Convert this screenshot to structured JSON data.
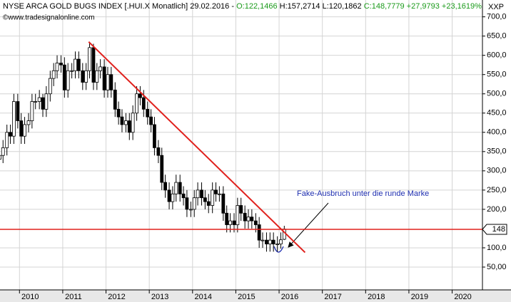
{
  "chart_data": {
    "type": "candlestick",
    "title": "NYSE ARCA GOLD BUGS INDEX [.HUI.X  Monatlich] 29.02.2016 -",
    "quote": [
      "O:122,1466",
      "H:157,2714",
      "L:120,1862",
      "C:148,7779 +27,9793 +23,1619%"
    ],
    "source": "©www.tradesignalonline.com",
    "axis_code": "XXP",
    "annotation": "Fake-Ausbruch unter die runde Marke",
    "x": [
      2009.54,
      2009.62,
      2009.71,
      2009.79,
      2009.87,
      2009.96,
      2010.04,
      2010.12,
      2010.21,
      2010.29,
      2010.37,
      2010.46,
      2010.54,
      2010.62,
      2010.71,
      2010.79,
      2010.87,
      2010.96,
      2011.04,
      2011.12,
      2011.21,
      2011.29,
      2011.37,
      2011.46,
      2011.54,
      2011.62,
      2011.71,
      2011.79,
      2011.87,
      2011.96,
      2012.04,
      2012.12,
      2012.21,
      2012.29,
      2012.37,
      2012.46,
      2012.54,
      2012.62,
      2012.71,
      2012.79,
      2012.87,
      2012.96,
      2013.04,
      2013.12,
      2013.21,
      2013.29,
      2013.37,
      2013.46,
      2013.54,
      2013.62,
      2013.71,
      2013.79,
      2013.87,
      2013.96,
      2014.04,
      2014.12,
      2014.21,
      2014.29,
      2014.37,
      2014.46,
      2014.54,
      2014.62,
      2014.71,
      2014.79,
      2014.87,
      2014.96,
      2015.04,
      2015.12,
      2015.21,
      2015.29,
      2015.37,
      2015.46,
      2015.54,
      2015.62,
      2015.71,
      2015.79,
      2015.87,
      2015.96,
      2016.04,
      2016.12
    ],
    "open": [
      330,
      340,
      360,
      400,
      390,
      480,
      430,
      390,
      420,
      430,
      480,
      480,
      490,
      460,
      500,
      540,
      560,
      580,
      575,
      510,
      560,
      560,
      590,
      560,
      530,
      560,
      620,
      530,
      560,
      570,
      510,
      550,
      510,
      460,
      440,
      420,
      430,
      400,
      450,
      500,
      490,
      460,
      440,
      420,
      360,
      340,
      270,
      250,
      220,
      240,
      270,
      240,
      230,
      200,
      200,
      230,
      250,
      230,
      220,
      210,
      250,
      240,
      240,
      190,
      160,
      170,
      160,
      210,
      190,
      170,
      180,
      170,
      160,
      120,
      120,
      110,
      120,
      110,
      110,
      122.1466
    ],
    "high": [
      360,
      380,
      420,
      420,
      500,
      500,
      450,
      440,
      450,
      500,
      500,
      510,
      500,
      520,
      560,
      580,
      600,
      600,
      595,
      580,
      580,
      610,
      610,
      580,
      580,
      635,
      630,
      580,
      590,
      590,
      570,
      570,
      530,
      480,
      460,
      450,
      450,
      470,
      520,
      520,
      510,
      480,
      460,
      440,
      380,
      360,
      290,
      270,
      260,
      290,
      290,
      260,
      250,
      220,
      250,
      270,
      270,
      250,
      240,
      270,
      270,
      260,
      260,
      210,
      190,
      190,
      230,
      230,
      210,
      200,
      200,
      190,
      180,
      140,
      140,
      140,
      140,
      130,
      140,
      157.2714
    ],
    "low": [
      310,
      320,
      340,
      370,
      370,
      410,
      370,
      370,
      400,
      410,
      460,
      460,
      440,
      440,
      480,
      520,
      540,
      555,
      490,
      490,
      540,
      540,
      540,
      510,
      510,
      540,
      510,
      510,
      540,
      490,
      490,
      490,
      440,
      420,
      400,
      400,
      380,
      380,
      430,
      470,
      440,
      420,
      400,
      340,
      320,
      250,
      230,
      200,
      200,
      220,
      220,
      210,
      180,
      180,
      180,
      210,
      210,
      200,
      190,
      190,
      220,
      220,
      170,
      140,
      140,
      140,
      140,
      170,
      150,
      150,
      150,
      140,
      100,
      100,
      90,
      90,
      90,
      90,
      98,
      120.1862
    ],
    "close": [
      340,
      360,
      400,
      390,
      480,
      430,
      390,
      420,
      430,
      480,
      480,
      490,
      460,
      500,
      540,
      560,
      580,
      575,
      510,
      560,
      560,
      590,
      560,
      530,
      560,
      620,
      530,
      560,
      570,
      510,
      550,
      510,
      460,
      440,
      420,
      430,
      400,
      450,
      500,
      490,
      460,
      440,
      420,
      360,
      340,
      270,
      250,
      220,
      240,
      270,
      240,
      230,
      200,
      200,
      230,
      250,
      230,
      220,
      210,
      250,
      240,
      240,
      190,
      160,
      170,
      160,
      210,
      190,
      170,
      180,
      170,
      160,
      120,
      120,
      110,
      120,
      110,
      110,
      120.7986,
      148.7779
    ],
    "trendline": {
      "x": [
        2011.6,
        2016.6
      ],
      "y": [
        635,
        88
      ],
      "color": "#e0201c"
    },
    "hline": {
      "value": 148,
      "label": "148",
      "color": "#e0201c"
    },
    "xlim": [
      2009.55,
      2020.7
    ],
    "xticks": [
      2010,
      2011,
      2012,
      2013,
      2014,
      2015,
      2016,
      2017,
      2018,
      2019,
      2020
    ],
    "ylim": [
      0,
      740
    ],
    "yticks": [
      {
        "value": 50,
        "label": "50,00"
      },
      {
        "value": 100,
        "label": "100,0"
      },
      {
        "value": 200,
        "label": "200,0"
      },
      {
        "value": 250,
        "label": "250,0"
      },
      {
        "value": 300,
        "label": "300,0"
      },
      {
        "value": 350,
        "label": "350,0"
      },
      {
        "value": 400,
        "label": "400,0"
      },
      {
        "value": 450,
        "label": "450,0"
      },
      {
        "value": 500,
        "label": "500,0"
      },
      {
        "value": 550,
        "label": "550,0"
      },
      {
        "value": 600,
        "label": "600,0"
      },
      {
        "value": 650,
        "label": "650,0"
      },
      {
        "value": 700,
        "label": "700,0"
      }
    ],
    "grid": true
  }
}
